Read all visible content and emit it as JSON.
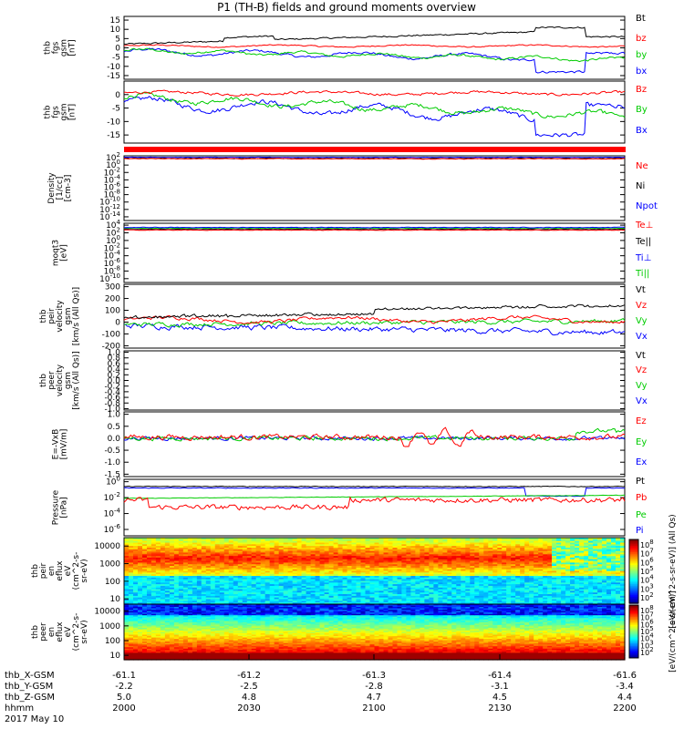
{
  "title": "P1 (TH-B) fields and ground moments overview",
  "colors": {
    "black": "#000000",
    "red": "#ff0000",
    "green": "#00cc00",
    "blue": "#0000ff"
  },
  "chart_data": [
    {
      "type": "line",
      "ylabel": [
        "thb",
        "fgs",
        "gsm",
        "[nT]"
      ],
      "yticks": [
        "15",
        "10",
        "5",
        "0",
        "-5",
        "-10",
        "-15"
      ],
      "ylim": [
        -17,
        17
      ],
      "legend": [
        {
          "label": "Bt",
          "color": "#000000"
        },
        {
          "label": "bz",
          "color": "#ff0000"
        },
        {
          "label": "by",
          "color": "#00cc00"
        },
        {
          "label": "bx",
          "color": "#0000ff"
        }
      ]
    },
    {
      "type": "line",
      "ylabel": [
        "thb",
        "fgs",
        "gsm",
        "[nT]"
      ],
      "yticks": [
        "0",
        "-5",
        "-10",
        "-15"
      ],
      "ylim": [
        -18,
        5
      ],
      "legend": [
        {
          "label": "Bz",
          "color": "#ff0000"
        },
        {
          "label": "By",
          "color": "#00cc00"
        },
        {
          "label": "Bx",
          "color": "#0000ff"
        }
      ]
    },
    {
      "type": "line",
      "ylabel": [
        "Density",
        "[1/cc]",
        "[cm-3]"
      ],
      "yticks": [
        "10^2",
        "10^0",
        "10^-2",
        "10^-4",
        "10^-6",
        "10^-8",
        "10^-10",
        "10^-12",
        "10^-14"
      ],
      "ylim": [
        -15,
        2.5
      ],
      "legend": [
        {
          "label": "Ne",
          "color": "#ff0000"
        },
        {
          "label": "Ni",
          "color": "#000000"
        },
        {
          "label": "Npot",
          "color": "#0000ff"
        }
      ]
    },
    {
      "type": "line",
      "ylabel": [
        "moqt3",
        "[eV]"
      ],
      "yticks": [
        "10^4",
        "10^2",
        "10^0",
        "10^-2",
        "10^-4",
        "10^-6",
        "10^-8",
        "10^-10"
      ],
      "ylim": [
        -11,
        4.5
      ],
      "legend": [
        {
          "label": "Te⊥",
          "color": "#ff0000"
        },
        {
          "label": "Te||",
          "color": "#000000"
        },
        {
          "label": "Ti⊥",
          "color": "#0000ff"
        },
        {
          "label": "Ti||",
          "color": "#00cc00"
        }
      ]
    },
    {
      "type": "line",
      "ylabel": [
        "thb",
        "peir",
        "velocity",
        "gsm",
        "[km/s (All Qs)]"
      ],
      "yticks": [
        "300",
        "200",
        "100",
        "0",
        "-100",
        "-200"
      ],
      "ylim": [
        -220,
        320
      ],
      "legend": [
        {
          "label": "Vt",
          "color": "#000000"
        },
        {
          "label": "Vz",
          "color": "#ff0000"
        },
        {
          "label": "Vy",
          "color": "#00cc00"
        },
        {
          "label": "Vx",
          "color": "#0000ff"
        }
      ]
    },
    {
      "type": "line",
      "ylabel": [
        "thb",
        "peer",
        "velocity",
        "gsm",
        "[km/s (All Qs)]"
      ],
      "yticks": [
        "1.0",
        "0.8",
        "0.6",
        "0.4",
        "0.2",
        "0.0",
        "-0.2",
        "-0.4",
        "-0.6",
        "-0.8",
        "-1.0"
      ],
      "ylim": [
        -1.05,
        1.05
      ],
      "legend": [
        {
          "label": "Vt",
          "color": "#000000"
        },
        {
          "label": "Vz",
          "color": "#ff0000"
        },
        {
          "label": "Vy",
          "color": "#00cc00"
        },
        {
          "label": "Vx",
          "color": "#0000ff"
        }
      ]
    },
    {
      "type": "line",
      "ylabel": [
        "E=-VxB",
        "[mV/m]"
      ],
      "yticks": [
        "1.0",
        "0.5",
        "0.0",
        "-0.5",
        "-1.0",
        "-1.5"
      ],
      "ylim": [
        -1.6,
        1.1
      ],
      "legend": [
        {
          "label": "Ez",
          "color": "#ff0000"
        },
        {
          "label": "Ey",
          "color": "#00cc00"
        },
        {
          "label": "Ex",
          "color": "#0000ff"
        }
      ]
    },
    {
      "type": "line",
      "ylabel": [
        "Pressure",
        "[nPa]"
      ],
      "yticks": [
        "10^0",
        "10^-2",
        "10^-4",
        "10^-6"
      ],
      "ylim": [
        -6.8,
        0.3
      ],
      "legend": [
        {
          "label": "Pt",
          "color": "#000000"
        },
        {
          "label": "Pb",
          "color": "#ff0000"
        },
        {
          "label": "Pe",
          "color": "#00cc00"
        },
        {
          "label": "Pi",
          "color": "#0000ff"
        }
      ]
    },
    {
      "type": "heatmap",
      "ylabel": [
        "thb",
        "peir",
        "en",
        "eflux",
        "eV",
        "(cm^2-s-",
        "sr-eV)"
      ],
      "yticks": [
        "10000",
        "1000",
        "100",
        "10"
      ],
      "ylim": [
        5,
        30000
      ]
    },
    {
      "type": "heatmap",
      "ylabel": [
        "thb",
        "peer",
        "en",
        "eflux",
        "eV",
        "(cm^2-s-",
        "sr-eV)"
      ],
      "yticks": [
        "10000",
        "1000",
        "100",
        "10"
      ],
      "ylim": [
        5,
        30000
      ]
    }
  ],
  "colorbar_upper": {
    "ticks": [
      "10^8",
      "10^7",
      "10^6",
      "10^5",
      "10^4",
      "10^3",
      "10^2"
    ],
    "label": "[eV/(cm^2-s-sr-eV)] (All Qs)"
  },
  "colorbar_lower": {
    "ticks": [
      "10^8",
      "10^7",
      "10^6",
      "10^5",
      "10^4",
      "10^3",
      "10^2"
    ],
    "label": "[eV/(cm^2-s-sr-eV)]"
  },
  "x_axis": {
    "rows": [
      {
        "label": "thb_X-GSM",
        "values": [
          "-61.1",
          "-61.2",
          "-61.3",
          "-61.4",
          "-61.6"
        ]
      },
      {
        "label": "thb_Y-GSM",
        "values": [
          "-2.2",
          "-2.5",
          "-2.8",
          "-3.1",
          "-3.4"
        ]
      },
      {
        "label": "thb_Z-GSM",
        "values": [
          "5.0",
          "4.8",
          "4.7",
          "4.5",
          "4.4"
        ]
      },
      {
        "label": "hhmm",
        "values": [
          "2000",
          "2030",
          "2100",
          "2130",
          "2200"
        ]
      }
    ],
    "date": "2017 May 10"
  }
}
